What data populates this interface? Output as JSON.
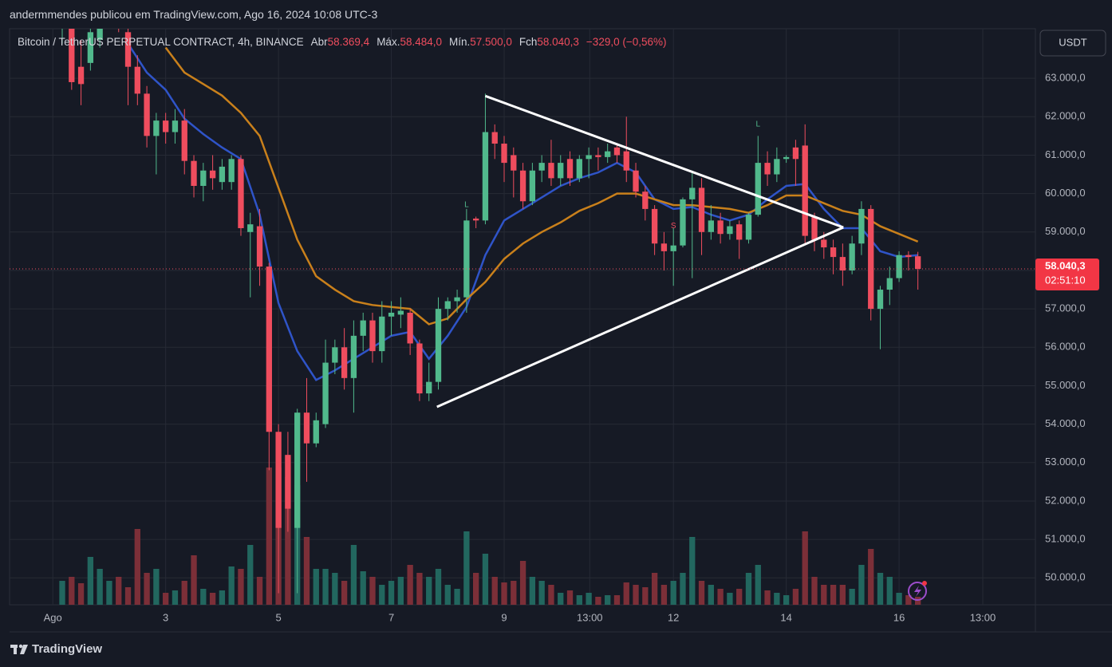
{
  "header": "andermmendes publicou em TradingView.com, Ago 16, 2024 10:08 UTC-3",
  "footer": "TradingView",
  "chart_data": {
    "type": "candlestick",
    "symbol": "Bitcoin / TetherUS PERPETUAL CONTRACT, 4h, BINANCE",
    "ohlc_legend": [
      {
        "label": "Abr",
        "value": {
          "value": 58369.4,
          "label": "58.369,4"
        }
      },
      {
        "label": "Máx.",
        "value": {
          "value": 58484,
          "label": "58.484,0"
        }
      },
      {
        "label": "Mín.",
        "value": {
          "value": 57500,
          "label": "57.500,0"
        }
      },
      {
        "label": "Fch",
        "value": {
          "value": 58040.3,
          "label": "58.040,3"
        }
      }
    ],
    "change": {
      "value": -329,
      "percent": -0.56,
      "label": "−329,0 (−0,56%)"
    },
    "currency": "USDT",
    "last_price": {
      "value": 58040.3,
      "label": "58.040,3"
    },
    "countdown": "02:51:10",
    "up_color": "#51b98c",
    "down_color": "#ef4d5e",
    "volume_up_color": "#22675f",
    "volume_down_color": "#7c2f38",
    "grid": true,
    "xlim": [
      -4.6,
      104.5
    ],
    "ylim": [
      49300,
      64290
    ],
    "vlim": [
      0,
      722
    ],
    "xticks": [
      {
        "value": 0,
        "label": "Ago"
      },
      {
        "value": 12,
        "label": "3"
      },
      {
        "value": 24,
        "label": "5"
      },
      {
        "value": 36,
        "label": "7"
      },
      {
        "value": 48,
        "label": "9"
      },
      {
        "value": 57.1,
        "label": "13:00"
      },
      {
        "value": 66,
        "label": "12"
      },
      {
        "value": 78,
        "label": "14"
      },
      {
        "value": 90,
        "label": "16"
      },
      {
        "value": 98.9,
        "label": "13:00"
      }
    ],
    "yticks": [
      {
        "value": 50000,
        "label": "50.000,0"
      },
      {
        "value": 51000,
        "label": "51.000,0"
      },
      {
        "value": 52000,
        "label": "52.000,0"
      },
      {
        "value": 53000,
        "label": "53.000,0"
      },
      {
        "value": 54000,
        "label": "54.000,0"
      },
      {
        "value": 55000,
        "label": "55.000,0"
      },
      {
        "value": 56000,
        "label": "56.000,0"
      },
      {
        "value": 57000,
        "label": "57.000,0"
      },
      {
        "value": 58000,
        "label": "58.000,0"
      },
      {
        "value": 59000,
        "label": "59.000,0"
      },
      {
        "value": 60000,
        "label": "60.000,0"
      },
      {
        "value": 61000,
        "label": "61.000,0"
      },
      {
        "value": 62000,
        "label": "62.000,0"
      },
      {
        "value": 63000,
        "label": "63.000,0"
      }
    ],
    "x": [
      1,
      2,
      3,
      4,
      5,
      6,
      7,
      8,
      9,
      10,
      11,
      12,
      13,
      14,
      15,
      16,
      17,
      18,
      19,
      20,
      21,
      22,
      23,
      24,
      25,
      26,
      27,
      28,
      29,
      30,
      31,
      32,
      33,
      34,
      35,
      36,
      37,
      38,
      39,
      40,
      41,
      42,
      43,
      44,
      45,
      46,
      47,
      48,
      49,
      50,
      51,
      52,
      53,
      54,
      55,
      56,
      57,
      58,
      59,
      60,
      61,
      62,
      63,
      64,
      65,
      66,
      67,
      68,
      69,
      70,
      71,
      72,
      73,
      74,
      75,
      76,
      77,
      78,
      79,
      80,
      81,
      82,
      83,
      84,
      85,
      86,
      87,
      88,
      89,
      90,
      91,
      92
    ],
    "open": [
      64300,
      64500,
      63300,
      63400,
      64000,
      64700,
      64800,
      64200,
      63300,
      62600,
      61500,
      61900,
      61600,
      61900,
      60850,
      60200,
      60600,
      60300,
      60300,
      60900,
      59000,
      59150,
      58100,
      53800,
      53200,
      51300,
      54300,
      53500,
      54000,
      55600,
      56000,
      55200,
      56300,
      56700,
      55900,
      56800,
      56850,
      56900,
      56100,
      54800,
      55100,
      57000,
      57200,
      57300,
      59350,
      59300,
      61600,
      61300,
      61000,
      60600,
      59800,
      60600,
      60800,
      60400,
      60900,
      60400,
      60900,
      61000,
      60950,
      61200,
      61100,
      60600,
      60050,
      59600,
      58700,
      58500,
      58650,
      59850,
      60150,
      59000,
      59300,
      58950,
      59200,
      58800,
      59450,
      60800,
      60500,
      60900,
      61200,
      61250,
      59400,
      58800,
      58600,
      58350,
      58000,
      58700,
      59600,
      57000,
      57500,
      57800,
      58400,
      58369.4
    ],
    "high": [
      64900,
      65000,
      64000,
      64500,
      65000,
      65200,
      65100,
      64500,
      63600,
      62800,
      62100,
      62100,
      62200,
      62200,
      61000,
      60800,
      61000,
      60900,
      61000,
      61000,
      59500,
      59600,
      58200,
      54000,
      53800,
      54400,
      55200,
      54300,
      56200,
      56200,
      56500,
      56700,
      56900,
      56900,
      57200,
      57200,
      57300,
      57000,
      56200,
      55600,
      57300,
      57300,
      57500,
      59600,
      59400,
      62600,
      61800,
      61500,
      61200,
      60800,
      60800,
      61000,
      61400,
      61000,
      61100,
      61000,
      61200,
      61200,
      61300,
      61300,
      62000,
      60800,
      60200,
      59700,
      59000,
      59100,
      59900,
      60600,
      60400,
      59700,
      59500,
      59300,
      59300,
      59500,
      61500,
      61100,
      61200,
      61000,
      61400,
      61800,
      59500,
      59000,
      58800,
      58700,
      58900,
      59800,
      59700,
      57600,
      58100,
      58500,
      58500,
      58484
    ],
    "low": [
      63900,
      62700,
      62300,
      63200,
      63800,
      64400,
      64200,
      62300,
      62300,
      61200,
      60500,
      61300,
      61300,
      60500,
      59900,
      59800,
      60100,
      60100,
      60100,
      58900,
      57300,
      57600,
      52800,
      49600,
      51200,
      49600,
      52500,
      53400,
      53900,
      55300,
      54900,
      54300,
      55900,
      55600,
      55600,
      56300,
      56500,
      55800,
      54600,
      54600,
      54900,
      56700,
      56900,
      56900,
      59100,
      59200,
      60900,
      60300,
      59900,
      59600,
      59700,
      60300,
      60200,
      60200,
      60200,
      60300,
      60400,
      60600,
      60800,
      60800,
      60300,
      59900,
      59300,
      58400,
      58000,
      57600,
      58600,
      57800,
      58400,
      58800,
      58700,
      58800,
      58300,
      58700,
      59400,
      60200,
      60300,
      60800,
      60200,
      58700,
      58500,
      58300,
      57900,
      57600,
      57900,
      58400,
      56700,
      55950,
      57100,
      57700,
      58000,
      57500
    ],
    "close": [
      64600,
      62900,
      62850,
      64200,
      64700,
      64900,
      64500,
      63300,
      62600,
      61500,
      61900,
      61600,
      61900,
      60850,
      60200,
      60600,
      60400,
      60700,
      60900,
      59100,
      59200,
      58100,
      53800,
      51300,
      51800,
      54300,
      53500,
      54100,
      55600,
      56000,
      55200,
      56300,
      56700,
      55900,
      56800,
      56900,
      56950,
      56100,
      54800,
      55100,
      57000,
      57200,
      57300,
      59300,
      59300,
      61600,
      61300,
      60800,
      60600,
      59800,
      60600,
      60800,
      60400,
      60800,
      60400,
      60900,
      61000,
      60950,
      61100,
      61000,
      60600,
      60050,
      59600,
      58700,
      58500,
      58650,
      59850,
      60150,
      59000,
      59300,
      58950,
      59150,
      58800,
      59450,
      60800,
      60500,
      60900,
      60950,
      60900,
      58900,
      58800,
      58600,
      58350,
      58000,
      58700,
      59600,
      57000,
      57500,
      57800,
      58400,
      58350,
      58040.3
    ],
    "volume": [
      30,
      35,
      27,
      60,
      45,
      30,
      35,
      22,
      95,
      40,
      45,
      15,
      18,
      30,
      62,
      20,
      15,
      18,
      48,
      45,
      75,
      35,
      172,
      172,
      160,
      150,
      85,
      45,
      45,
      40,
      30,
      75,
      42,
      35,
      25,
      30,
      35,
      50,
      40,
      35,
      45,
      25,
      20,
      92,
      40,
      64,
      35,
      28,
      30,
      55,
      35,
      30,
      25,
      15,
      18,
      12,
      15,
      10,
      12,
      12,
      28,
      25,
      22,
      40,
      25,
      30,
      40,
      85,
      30,
      25,
      20,
      15,
      20,
      40,
      50,
      18,
      15,
      12,
      20,
      92,
      35,
      25,
      25,
      25,
      20,
      50,
      70,
      40,
      35,
      15,
      12,
      10
    ],
    "moving_averages": [
      {
        "color": "#2f54c8",
        "x": [
          8,
          10,
          12,
          14,
          16,
          18,
          20,
          22,
          24,
          26,
          28,
          30,
          32,
          34,
          36,
          38,
          40,
          42,
          44,
          46,
          48,
          50,
          52,
          54,
          56,
          58,
          60,
          62,
          64,
          66,
          68,
          70,
          72,
          74,
          76,
          78,
          80,
          82,
          84,
          86,
          88,
          90,
          92
        ],
        "values": [
          63900,
          63150,
          62700,
          61950,
          61550,
          61200,
          60900,
          59450,
          57150,
          55900,
          55150,
          55400,
          55700,
          56000,
          56300,
          56400,
          55700,
          56300,
          57050,
          58400,
          59300,
          59600,
          59900,
          60200,
          60400,
          60550,
          60800,
          60550,
          59850,
          59600,
          59650,
          59450,
          59300,
          59450,
          59850,
          60200,
          60250,
          59600,
          59100,
          59100,
          58500,
          58350,
          58400
        ]
      },
      {
        "color": "#c9801b",
        "x": [
          12,
          14,
          16,
          18,
          20,
          22,
          24,
          26,
          28,
          30,
          32,
          34,
          36,
          38,
          40,
          42,
          44,
          46,
          48,
          50,
          52,
          54,
          56,
          58,
          60,
          62,
          64,
          66,
          68,
          70,
          72,
          74,
          76,
          78,
          80,
          82,
          84,
          86,
          88,
          90,
          92
        ],
        "values": [
          63800,
          63150,
          62850,
          62550,
          62100,
          61500,
          60150,
          58800,
          57850,
          57500,
          57200,
          57100,
          57050,
          57000,
          56600,
          56750,
          57250,
          57700,
          58300,
          58700,
          59000,
          59250,
          59550,
          59750,
          60000,
          60000,
          59850,
          59700,
          59700,
          59650,
          59600,
          59500,
          59700,
          59950,
          59950,
          59750,
          59550,
          59450,
          59150,
          58950,
          58750
        ]
      }
    ],
    "trendlines": [
      {
        "color": "#ffffff",
        "x": [
          46,
          84.07
        ],
        "y": [
          62540,
          59120
        ]
      },
      {
        "color": "#ffffff",
        "x": [
          40.85,
          84.07
        ],
        "y": [
          54450,
          59120
        ]
      }
    ],
    "annotations": [
      {
        "text": "L",
        "x": 44,
        "y": 59700,
        "color": "#51b98c"
      },
      {
        "text": "S",
        "x": 66,
        "y": 59150,
        "color": "#ef4d5e"
      },
      {
        "text": "L",
        "x": 75,
        "y": 61800,
        "color": "#51b98c"
      }
    ]
  }
}
